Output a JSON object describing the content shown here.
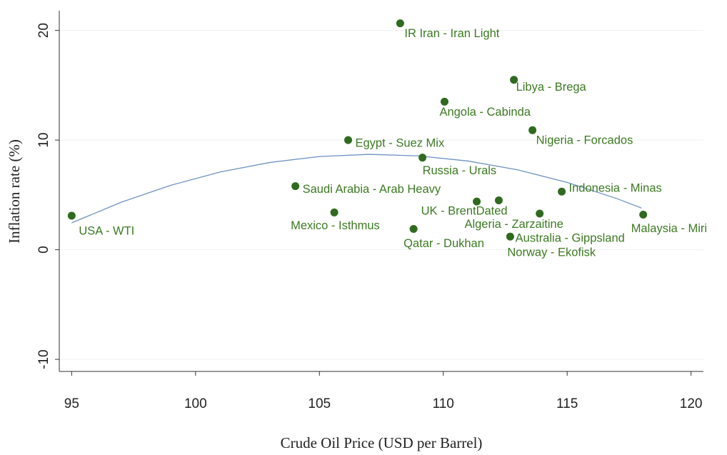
{
  "chart_data": {
    "type": "scatter",
    "x_label": "Crude Oil Price (USD per Barrel)",
    "y_label": "Inflation rate (%)",
    "series": [
      {
        "color": "#2f6b1e",
        "labels": [
          "USA - WTI",
          "Saudi Arabia - Arab Heavy",
          "Mexico - Isthmus",
          "Egypt - Suez Mix",
          "IR Iran - Iran Light",
          "Qatar - Dukhan",
          "Russia - Urals",
          "Angola - Cabinda",
          "UK - BrentDated",
          "Algeria - Zarzaitine",
          "Norway - Ekofisk",
          "Libya - Brega",
          "Australia - Gippsland",
          "Nigeria - Forcados",
          "Indonesia - Minas",
          "Malaysia - Miri"
        ],
        "x": [
          95,
          104.03,
          105.6,
          106.16,
          108.26,
          108.8,
          109.16,
          110.05,
          111.35,
          112.24,
          112.7,
          112.85,
          113.89,
          113.6,
          114.78,
          118.07
        ],
        "values": [
          3.1,
          5.8,
          3.4,
          10.0,
          20.65,
          1.9,
          8.4,
          13.5,
          4.4,
          4.5,
          1.2,
          15.5,
          3.3,
          10.9,
          5.3,
          3.2
        ]
      }
    ],
    "fit": {
      "type": "line",
      "color": "#6f93c2",
      "x": [
        95,
        97,
        99,
        101,
        103,
        105,
        107,
        109,
        111,
        113,
        115,
        117,
        118
      ],
      "values": [
        2.45,
        4.33,
        5.88,
        7.09,
        7.96,
        8.5,
        8.7,
        8.56,
        8.09,
        7.29,
        6.14,
        4.67,
        3.8
      ]
    },
    "xlim": [
      94.5,
      120.5
    ],
    "ylim": [
      -11.1,
      21.8
    ],
    "xticks": [
      95,
      100,
      105,
      110,
      115,
      120
    ],
    "yticks": [
      -10,
      0,
      10,
      20
    ],
    "grid": true
  }
}
